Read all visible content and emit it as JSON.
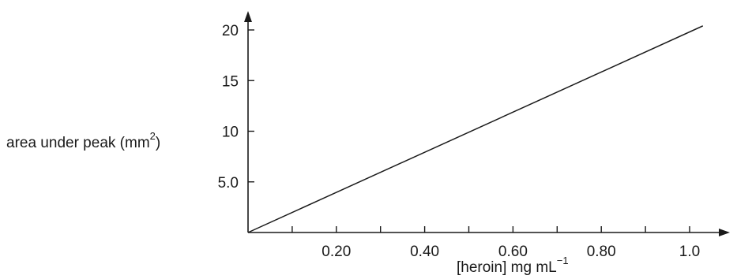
{
  "chart_data": {
    "type": "line",
    "title": "",
    "xlabel": {
      "main": "[heroin] mg mL",
      "superscript": "−1"
    },
    "ylabel": {
      "main": "area under peak (mm",
      "superscript": "2",
      "suffix": ")"
    },
    "xlim": [
      0,
      1.1
    ],
    "ylim": [
      0,
      21
    ],
    "x_major_ticks": [
      0.2,
      0.4,
      0.6,
      0.8,
      1.0
    ],
    "x_minor_ticks": [
      0.1,
      0.3,
      0.5,
      0.7,
      0.9
    ],
    "x_tick_labels": [
      "0.20",
      "0.40",
      "0.60",
      "0.80",
      "1.0"
    ],
    "y_ticks": [
      5,
      10,
      15,
      20
    ],
    "y_tick_labels": [
      "5.0",
      "10",
      "15",
      "20"
    ],
    "series": [
      {
        "x": [
          0,
          1.03
        ],
        "y": [
          0,
          20.4
        ],
        "color": "#1a1a1a"
      }
    ],
    "grid": false,
    "axis_color": "#1a1a1a"
  }
}
